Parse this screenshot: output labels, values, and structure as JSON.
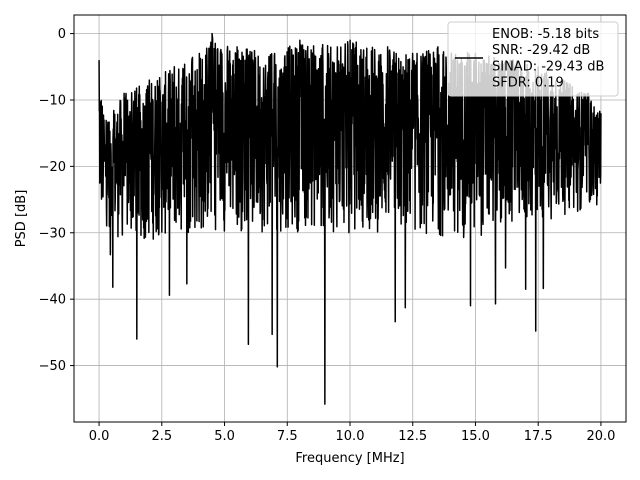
{
  "chart_data": {
    "type": "line",
    "title": "",
    "xlabel": "Frequency [MHz]",
    "ylabel": "PSD [dB]",
    "xlim": [
      -0.999,
      20.999
    ],
    "ylim": [
      -58.5,
      2.8
    ],
    "xticks": [
      0.0,
      2.5,
      5.0,
      7.5,
      10.0,
      12.5,
      15.0,
      17.5,
      20.0
    ],
    "xtick_labels": [
      "0.0",
      "2.5",
      "5.0",
      "7.5",
      "10.0",
      "12.5",
      "15.0",
      "17.5",
      "20.0"
    ],
    "yticks": [
      0,
      -10,
      -20,
      -30,
      -40,
      -50
    ],
    "ytick_labels": [
      "0",
      "−10",
      "−20",
      "−30",
      "−40",
      "−50"
    ],
    "grid": true,
    "legend_position": "upper-right",
    "series": [
      {
        "name": "ENOB: -5.18 bits\nSNR: -29.42 dB\nSINAD: -29.43 dB\nSFDR: 0.19",
        "color": "#000000",
        "x_range": [
          0.0,
          20.0
        ],
        "points": 2048,
        "upper_envelope_db": [
          [
            0.0,
            -4.0
          ],
          [
            0.2,
            -13
          ],
          [
            1.0,
            -9
          ],
          [
            2.0,
            -7
          ],
          [
            3.0,
            -5
          ],
          [
            4.0,
            -3
          ],
          [
            4.5,
            0
          ],
          [
            5.5,
            -2
          ],
          [
            7.0,
            -3
          ],
          [
            8.0,
            -1
          ],
          [
            9.5,
            -2
          ],
          [
            10.0,
            -1
          ],
          [
            11.5,
            -2
          ],
          [
            12.5,
            -3
          ],
          [
            13.5,
            -2
          ],
          [
            15.0,
            -3
          ],
          [
            16.5,
            -4
          ],
          [
            17.5,
            -5
          ],
          [
            18.5,
            -7
          ],
          [
            19.5,
            -9
          ],
          [
            20.0,
            -12
          ]
        ],
        "lower_envelope_db": [
          [
            0.0,
            -28
          ],
          [
            1.0,
            -32
          ],
          [
            5.0,
            -30
          ],
          [
            10.0,
            -30
          ],
          [
            15.0,
            -31
          ],
          [
            20.0,
            -26
          ]
        ],
        "deep_nulls": [
          [
            0.45,
            -33.3
          ],
          [
            0.55,
            -38.2
          ],
          [
            1.0,
            -37.0
          ],
          [
            1.5,
            -46.0
          ],
          [
            2.0,
            -43.0
          ],
          [
            2.8,
            -39.4
          ],
          [
            3.5,
            -37.7
          ],
          [
            5.5,
            -34.5
          ],
          [
            5.95,
            -46.8
          ],
          [
            6.9,
            -45.3
          ],
          [
            7.1,
            -50.2
          ],
          [
            9.0,
            -55.8
          ],
          [
            11.8,
            -43.4
          ],
          [
            12.2,
            -41.3
          ],
          [
            14.8,
            -41.0
          ],
          [
            15.8,
            -40.7
          ],
          [
            16.2,
            -35.3
          ],
          [
            17.0,
            -38.5
          ],
          [
            17.4,
            -44.8
          ],
          [
            17.7,
            -38.4
          ]
        ]
      }
    ]
  }
}
